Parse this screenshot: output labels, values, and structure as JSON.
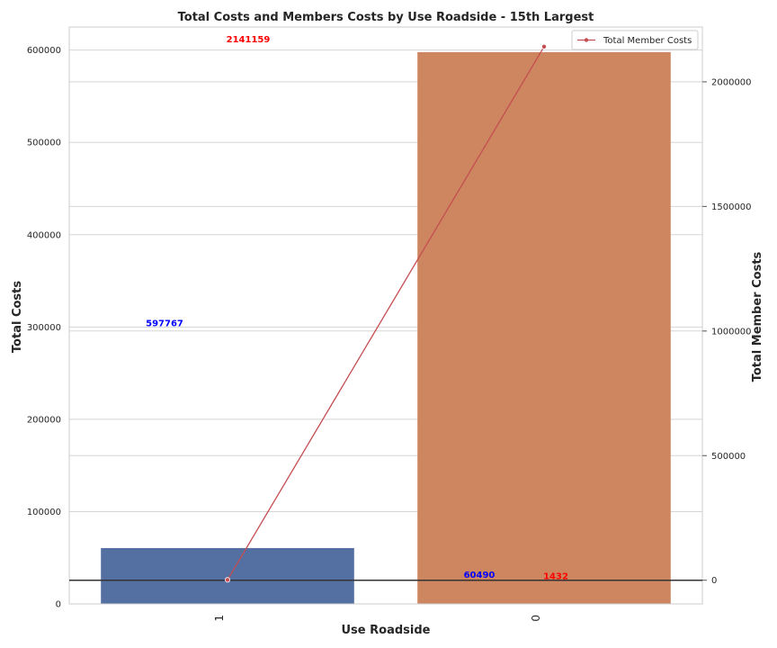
{
  "chart_data": {
    "type": "bar",
    "title": "Total Costs and Members Costs by Use Roadside - 15th Largest",
    "xlabel": "Use Roadside",
    "ylabel": "Total Costs",
    "y2label": "Total Member Costs",
    "categories": [
      "1",
      "0"
    ],
    "series": [
      {
        "axis": "left",
        "kind": "bar",
        "values": [
          60490,
          597767
        ],
        "colors": [
          "#5470a3",
          "#cd865f"
        ]
      },
      {
        "name": "Total Member Costs",
        "axis": "right",
        "kind": "line",
        "values": [
          1432,
          2141159
        ],
        "color": "#c44e52"
      }
    ],
    "ylim": [
      0,
      625000
    ],
    "y2lim": [
      -95000,
      2220000
    ],
    "yticks": [
      "0",
      "100000",
      "200000",
      "300000",
      "400000",
      "500000",
      "600000"
    ],
    "y2ticks": [
      "0",
      "500000",
      "1000000",
      "1500000",
      "2000000"
    ],
    "bar_value_labels": [
      "597767",
      "60490"
    ],
    "line_value_labels": [
      "2141159",
      "1432"
    ],
    "bar_label_color": "#0000ff",
    "line_label_color": "#ff0000",
    "reference_line_value": 0,
    "grid": true,
    "legend_position": "top-right",
    "legend": [
      "Total Member Costs"
    ]
  }
}
